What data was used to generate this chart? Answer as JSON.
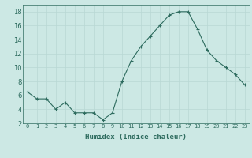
{
  "x": [
    0,
    1,
    2,
    3,
    4,
    5,
    6,
    7,
    8,
    9,
    10,
    11,
    12,
    13,
    14,
    15,
    16,
    17,
    18,
    19,
    20,
    21,
    22,
    23
  ],
  "y": [
    6.5,
    5.5,
    5.5,
    4.0,
    5.0,
    3.5,
    3.5,
    3.5,
    2.5,
    3.5,
    8.0,
    11.0,
    13.0,
    14.5,
    16.0,
    17.5,
    18.0,
    18.0,
    15.5,
    12.5,
    11.0,
    10.0,
    9.0,
    7.5
  ],
  "xlabel": "Humidex (Indice chaleur)",
  "ylim": [
    2,
    19
  ],
  "yticks": [
    2,
    4,
    6,
    8,
    10,
    12,
    14,
    16,
    18
  ],
  "xticks": [
    0,
    1,
    2,
    3,
    4,
    5,
    6,
    7,
    8,
    9,
    10,
    11,
    12,
    13,
    14,
    15,
    16,
    17,
    18,
    19,
    20,
    21,
    22,
    23
  ],
  "line_color": "#2d6b5e",
  "bg_color": "#cce8e4",
  "grid_color": "#b8d8d4",
  "tick_label_color": "#2d6b5e",
  "xlabel_color": "#2d6b5e",
  "marker": "+"
}
